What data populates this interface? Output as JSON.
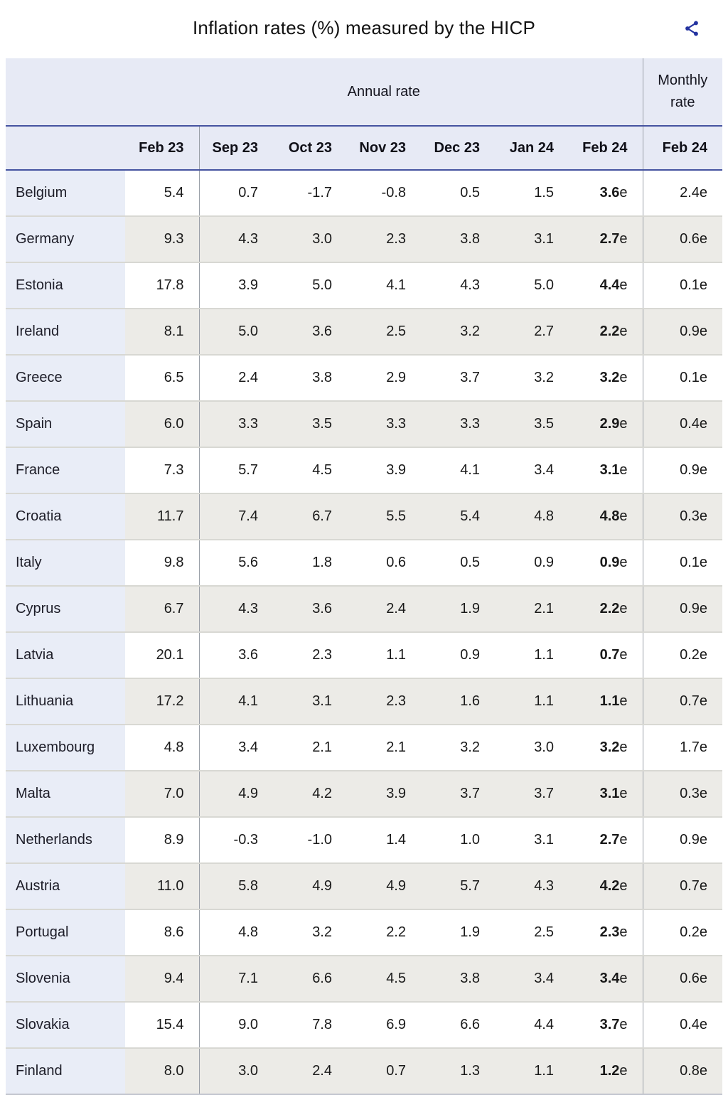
{
  "header": {
    "share_icon": "share-icon",
    "share_color": "#2433a0"
  },
  "colors": {
    "header_bg": "#e7eaf5",
    "country_col_bg": "#e9edf7",
    "stripe_gray": "#ecebe7",
    "stripe_white": "#ffffff",
    "navy_divider": "#4553a0",
    "gray_divider": "#9aa0a8"
  },
  "chart_data": {
    "type": "table",
    "title": "Inflation rates (%) measured by the HICP",
    "group_headers": {
      "annual": "Annual rate",
      "monthly": "Monthly rate"
    },
    "columns": [
      "Feb 23",
      "Sep 23",
      "Oct 23",
      "Nov 23",
      "Dec 23",
      "Jan 24",
      "Feb 24",
      "Feb 24"
    ],
    "estimate_flag": "e",
    "rows": [
      {
        "country": "Belgium",
        "feb23": "5.4",
        "sep23": "0.7",
        "oct23": "-1.7",
        "nov23": "-0.8",
        "dec23": "0.5",
        "jan24": "1.5",
        "feb24": "3.6e",
        "monthly": "2.4e"
      },
      {
        "country": "Germany",
        "feb23": "9.3",
        "sep23": "4.3",
        "oct23": "3.0",
        "nov23": "2.3",
        "dec23": "3.8",
        "jan24": "3.1",
        "feb24": "2.7e",
        "monthly": "0.6e"
      },
      {
        "country": "Estonia",
        "feb23": "17.8",
        "sep23": "3.9",
        "oct23": "5.0",
        "nov23": "4.1",
        "dec23": "4.3",
        "jan24": "5.0",
        "feb24": "4.4e",
        "monthly": "0.1e"
      },
      {
        "country": "Ireland",
        "feb23": "8.1",
        "sep23": "5.0",
        "oct23": "3.6",
        "nov23": "2.5",
        "dec23": "3.2",
        "jan24": "2.7",
        "feb24": "2.2e",
        "monthly": "0.9e"
      },
      {
        "country": "Greece",
        "feb23": "6.5",
        "sep23": "2.4",
        "oct23": "3.8",
        "nov23": "2.9",
        "dec23": "3.7",
        "jan24": "3.2",
        "feb24": "3.2e",
        "monthly": "0.1e"
      },
      {
        "country": "Spain",
        "feb23": "6.0",
        "sep23": "3.3",
        "oct23": "3.5",
        "nov23": "3.3",
        "dec23": "3.3",
        "jan24": "3.5",
        "feb24": "2.9e",
        "monthly": "0.4e"
      },
      {
        "country": "France",
        "feb23": "7.3",
        "sep23": "5.7",
        "oct23": "4.5",
        "nov23": "3.9",
        "dec23": "4.1",
        "jan24": "3.4",
        "feb24": "3.1e",
        "monthly": "0.9e"
      },
      {
        "country": "Croatia",
        "feb23": "11.7",
        "sep23": "7.4",
        "oct23": "6.7",
        "nov23": "5.5",
        "dec23": "5.4",
        "jan24": "4.8",
        "feb24": "4.8e",
        "monthly": "0.3e"
      },
      {
        "country": "Italy",
        "feb23": "9.8",
        "sep23": "5.6",
        "oct23": "1.8",
        "nov23": "0.6",
        "dec23": "0.5",
        "jan24": "0.9",
        "feb24": "0.9e",
        "monthly": "0.1e"
      },
      {
        "country": "Cyprus",
        "feb23": "6.7",
        "sep23": "4.3",
        "oct23": "3.6",
        "nov23": "2.4",
        "dec23": "1.9",
        "jan24": "2.1",
        "feb24": "2.2e",
        "monthly": "0.9e"
      },
      {
        "country": "Latvia",
        "feb23": "20.1",
        "sep23": "3.6",
        "oct23": "2.3",
        "nov23": "1.1",
        "dec23": "0.9",
        "jan24": "1.1",
        "feb24": "0.7e",
        "monthly": "0.2e"
      },
      {
        "country": "Lithuania",
        "feb23": "17.2",
        "sep23": "4.1",
        "oct23": "3.1",
        "nov23": "2.3",
        "dec23": "1.6",
        "jan24": "1.1",
        "feb24": "1.1e",
        "monthly": "0.7e"
      },
      {
        "country": "Luxembourg",
        "feb23": "4.8",
        "sep23": "3.4",
        "oct23": "2.1",
        "nov23": "2.1",
        "dec23": "3.2",
        "jan24": "3.0",
        "feb24": "3.2e",
        "monthly": "1.7e"
      },
      {
        "country": "Malta",
        "feb23": "7.0",
        "sep23": "4.9",
        "oct23": "4.2",
        "nov23": "3.9",
        "dec23": "3.7",
        "jan24": "3.7",
        "feb24": "3.1e",
        "monthly": "0.3e"
      },
      {
        "country": "Netherlands",
        "feb23": "8.9",
        "sep23": "-0.3",
        "oct23": "-1.0",
        "nov23": "1.4",
        "dec23": "1.0",
        "jan24": "3.1",
        "feb24": "2.7e",
        "monthly": "0.9e"
      },
      {
        "country": "Austria",
        "feb23": "11.0",
        "sep23": "5.8",
        "oct23": "4.9",
        "nov23": "4.9",
        "dec23": "5.7",
        "jan24": "4.3",
        "feb24": "4.2e",
        "monthly": "0.7e"
      },
      {
        "country": "Portugal",
        "feb23": "8.6",
        "sep23": "4.8",
        "oct23": "3.2",
        "nov23": "2.2",
        "dec23": "1.9",
        "jan24": "2.5",
        "feb24": "2.3e",
        "monthly": "0.2e"
      },
      {
        "country": "Slovenia",
        "feb23": "9.4",
        "sep23": "7.1",
        "oct23": "6.6",
        "nov23": "4.5",
        "dec23": "3.8",
        "jan24": "3.4",
        "feb24": "3.4e",
        "monthly": "0.6e"
      },
      {
        "country": "Slovakia",
        "feb23": "15.4",
        "sep23": "9.0",
        "oct23": "7.8",
        "nov23": "6.9",
        "dec23": "6.6",
        "jan24": "4.4",
        "feb24": "3.7e",
        "monthly": "0.4e"
      },
      {
        "country": "Finland",
        "feb23": "8.0",
        "sep23": "3.0",
        "oct23": "2.4",
        "nov23": "0.7",
        "dec23": "1.3",
        "jan24": "1.1",
        "feb24": "1.2e",
        "monthly": "0.8e"
      }
    ]
  }
}
